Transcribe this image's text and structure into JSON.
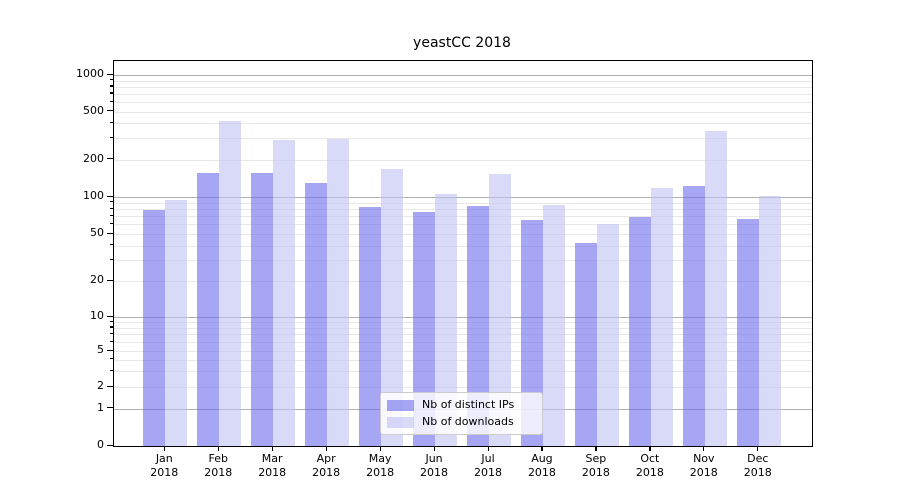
{
  "title": "yeastCC 2018",
  "chart_data": {
    "type": "bar",
    "title": "yeastCC 2018",
    "categories": [
      "Jan 2018",
      "Feb 2018",
      "Mar 2018",
      "Apr 2018",
      "May 2018",
      "Jun 2018",
      "Jul 2018",
      "Aug 2018",
      "Sep 2018",
      "Oct 2018",
      "Nov 2018",
      "Dec 2018"
    ],
    "series": [
      {
        "name": "Nb of distinct IPs",
        "color": "#a2a2f1",
        "fill": "rgba(107,107,237,0.6)",
        "values": [
          79,
          155,
          155,
          130,
          83,
          76,
          85,
          65,
          42,
          69,
          123,
          66
        ]
      },
      {
        "name": "Nb of downloads",
        "color": "#d8d8f7",
        "fill": "rgba(192,192,243,0.6)",
        "values": [
          94,
          420,
          290,
          295,
          167,
          105,
          153,
          86,
          60,
          119,
          346,
          101
        ]
      }
    ],
    "yscale": "symlog",
    "yticks": [
      0,
      1,
      2,
      5,
      10,
      20,
      50,
      100,
      200,
      500,
      1000
    ],
    "ylim": [
      0,
      1300
    ],
    "xlabel": "",
    "ylabel": "",
    "grid": "both",
    "grid_major_color": "#b0b0b0",
    "grid_minor_color": "#e8e8e8",
    "legend_position": "lower center"
  }
}
